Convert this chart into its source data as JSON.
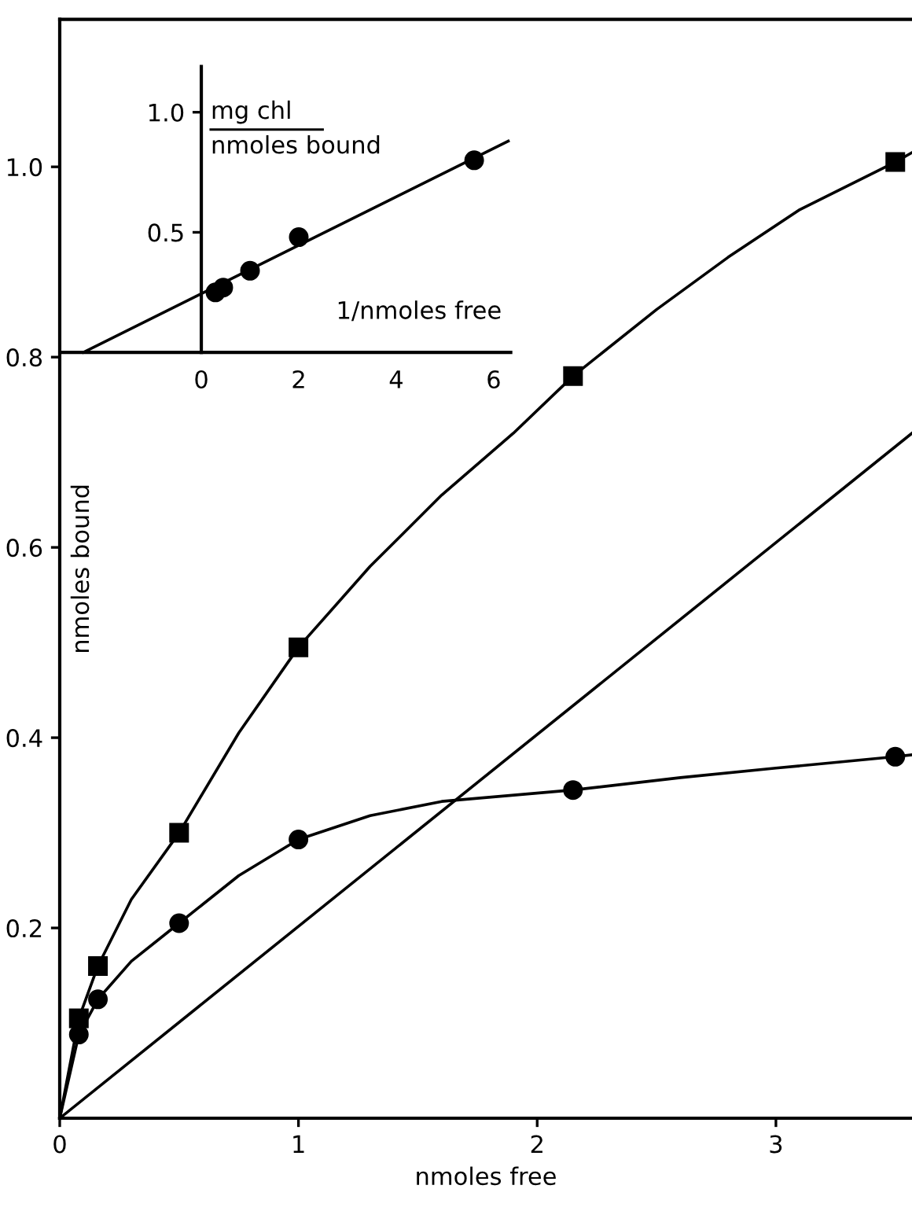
{
  "chart_data": [
    {
      "type": "scatter",
      "xlabel": "nmoles free",
      "ylabel": "nmoles bound",
      "xlim": [
        0,
        3.57
      ],
      "ylim": [
        0,
        1.155
      ],
      "xticks": [
        0,
        1,
        2,
        3
      ],
      "yticks": [
        0.2,
        0.4,
        0.6,
        0.8,
        {
          "value": 1.0,
          "label": "1.0"
        }
      ],
      "grid": false,
      "legend": false,
      "series": [
        {
          "marker": "square",
          "color": "#000000",
          "x": [
            0.08,
            0.16,
            0.5,
            1.0,
            2.15,
            3.5
          ],
          "values": [
            0.105,
            0.16,
            0.3,
            0.495,
            0.78,
            1.005
          ]
        },
        {
          "marker": "circle",
          "color": "#000000",
          "x": [
            0.08,
            0.16,
            0.5,
            1.0,
            2.15,
            3.5
          ],
          "values": [
            0.088,
            0.125,
            0.205,
            0.293,
            0.345,
            0.38
          ]
        },
        {
          "type": "line",
          "marker": "none",
          "line_style": "solid",
          "color": "#000000",
          "x": [
            0,
            0.08,
            0.16,
            0.3,
            0.5,
            0.75,
            1.0,
            1.3,
            1.6,
            1.9,
            2.15,
            2.5,
            2.8,
            3.1,
            3.5,
            3.57
          ],
          "values": [
            0,
            0.105,
            0.16,
            0.23,
            0.3,
            0.405,
            0.495,
            0.58,
            0.655,
            0.72,
            0.78,
            0.85,
            0.905,
            0.955,
            1.005,
            1.015
          ]
        },
        {
          "type": "line",
          "marker": "none",
          "line_style": "solid",
          "color": "#000000",
          "x": [
            0,
            0.08,
            0.16,
            0.3,
            0.5,
            0.75,
            1.0,
            1.3,
            1.6,
            2.15,
            2.6,
            3.0,
            3.5,
            3.57
          ],
          "values": [
            0,
            0.088,
            0.125,
            0.165,
            0.205,
            0.255,
            0.293,
            0.318,
            0.333,
            0.345,
            0.358,
            0.368,
            0.38,
            0.382
          ]
        },
        {
          "type": "line",
          "marker": "none",
          "line_style": "solid",
          "color": "#000000",
          "x": [
            0,
            3.57
          ],
          "values": [
            0,
            0.72
          ]
        }
      ]
    },
    {
      "type": "scatter",
      "xlabel": "1/nmoles free",
      "ylabel": "mg chl\nnmoles bound",
      "xlim": [
        -2.84,
        6.35
      ],
      "ylim": [
        0,
        1.19
      ],
      "xticks": [
        0,
        2,
        4,
        6
      ],
      "yticks": [
        0.5,
        {
          "value": 1.0,
          "label": "1.0"
        }
      ],
      "grid": false,
      "legend": false,
      "series": [
        {
          "marker": "circle",
          "color": "#000000",
          "x": [
            0.29,
            0.45,
            1.0,
            2.0,
            5.6
          ],
          "values": [
            0.25,
            0.27,
            0.34,
            0.48,
            0.8
          ]
        },
        {
          "type": "line",
          "marker": "none",
          "line_style": "solid",
          "color": "#000000",
          "x": [
            -2.42,
            6.3
          ],
          "values": [
            0,
            0.88
          ]
        }
      ]
    }
  ]
}
